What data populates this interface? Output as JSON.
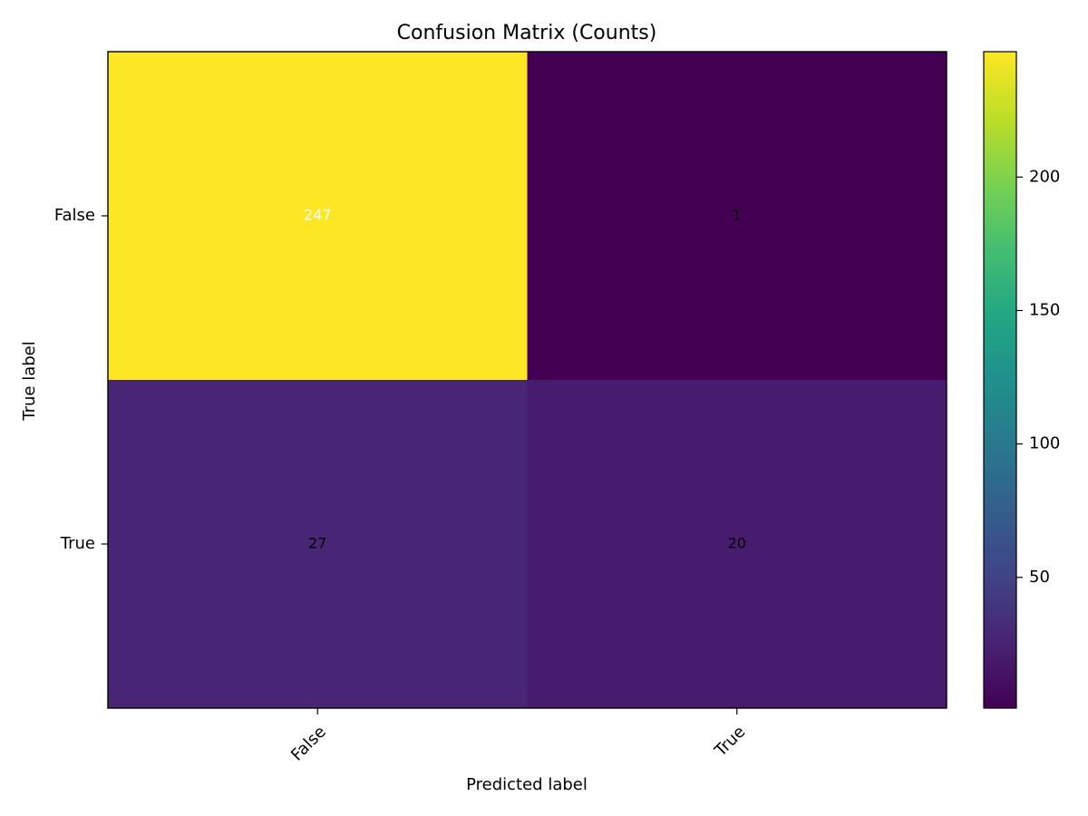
{
  "chart_data": {
    "type": "heatmap",
    "title": "Confusion Matrix (Counts)",
    "xlabel": "Predicted label",
    "ylabel": "True label",
    "x_categories": [
      "False",
      "True"
    ],
    "y_categories": [
      "False",
      "True"
    ],
    "values": [
      [
        247,
        1
      ],
      [
        27,
        20
      ]
    ],
    "colormap": "viridis",
    "color_range": [
      1,
      247
    ],
    "colorbar": {
      "ticks": [
        50,
        100,
        150,
        200
      ],
      "tick_labels": [
        "50",
        "100",
        "150",
        "200"
      ]
    },
    "grid": false
  }
}
